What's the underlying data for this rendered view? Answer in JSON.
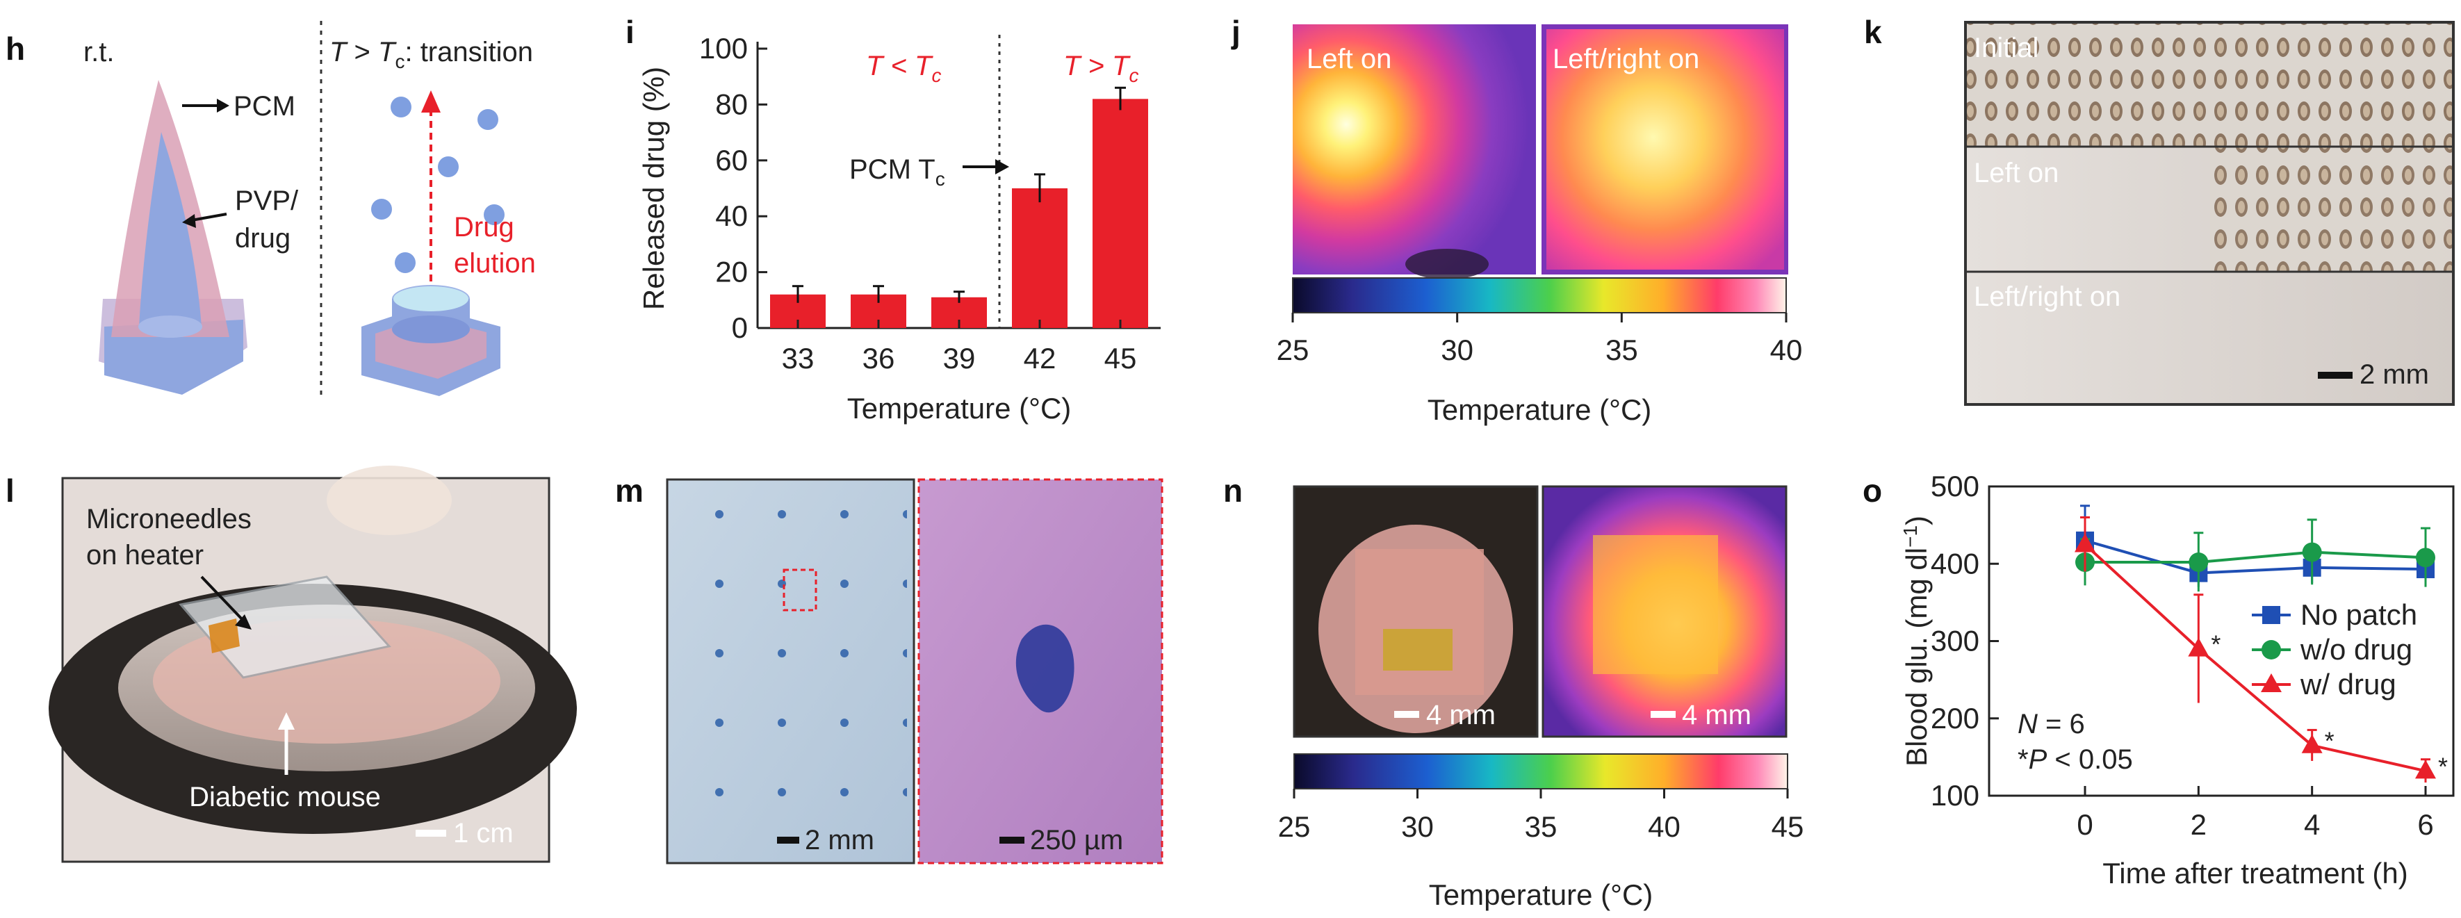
{
  "panels": {
    "h": {
      "label": "h",
      "left_title": "r.t.",
      "right_title_italic": "T",
      "right_title_gt": " > ",
      "right_title_tc": "T",
      "right_title_sub": "c",
      "right_title_rest": ": transition",
      "pcm": "PCM",
      "pvp_line1": "PVP/",
      "pvp_line2": "drug",
      "elution_line1": "Drug",
      "elution_line2": "elution"
    },
    "i": {
      "label": "i",
      "region_low": "T < T",
      "region_low_sub": "c",
      "region_high": "T > T",
      "region_high_sub": "c",
      "pcm_tc": "PCM T",
      "pcm_tc_sub": "c"
    },
    "j": {
      "label": "j",
      "left_on": "Left on",
      "left_right_on": "Left/right on",
      "colorbar_ticks": [
        "25",
        "30",
        "35",
        "40"
      ],
      "xlabel": "Temperature (°C)"
    },
    "k": {
      "label": "k",
      "rows": [
        "Initial",
        "Left on",
        "Left/right on"
      ],
      "scale": "2 mm"
    },
    "l": {
      "label": "l",
      "callout_line1": "Microneedles",
      "callout_line2": "on heater",
      "mouse": "Diabetic mouse",
      "scale": "1 cm"
    },
    "m": {
      "label": "m",
      "scale_left": "2 mm",
      "scale_right": "250 µm"
    },
    "n": {
      "label": "n",
      "scale_left": "4 mm",
      "scale_right": "4 mm",
      "colorbar_ticks": [
        "25",
        "30",
        "35",
        "40",
        "45"
      ],
      "xlabel": "Temperature (°C)"
    },
    "o": {
      "label": "o",
      "annotation_n": "N = 6",
      "annotation_p": "*P < 0.05",
      "star": "*"
    }
  },
  "colors": {
    "red": "#e8202a",
    "blue": "#1f4fb4",
    "green": "#1a9a4a",
    "needle_blue": "#8fa6df",
    "pcm_pink": "#d9a0b5"
  },
  "chart_data": [
    {
      "id": "panel-i",
      "type": "bar",
      "title": "",
      "categories": [
        "33",
        "36",
        "39",
        "42",
        "45"
      ],
      "values": [
        12,
        12,
        11,
        50,
        82
      ],
      "errors": [
        3,
        3,
        2,
        5,
        4
      ],
      "xlabel": "Temperature (°C)",
      "ylabel": "Released drug (%)",
      "ylim": [
        0,
        100
      ],
      "yticks": [
        "0",
        "20",
        "40",
        "60",
        "80",
        "100"
      ],
      "threshold_between": [
        "39",
        "42"
      ]
    },
    {
      "id": "panel-o",
      "type": "line",
      "x": [
        0,
        2,
        4,
        6
      ],
      "xticks": [
        "0",
        "2",
        "4",
        "6"
      ],
      "xlabel": "Time after treatment (h)",
      "ylabel": "Blood glu. (mg dl",
      "ylabel_sup": "−1",
      "ylabel_close": ")",
      "ylim": [
        100,
        500
      ],
      "yticks": [
        "100",
        "200",
        "300",
        "400",
        "500"
      ],
      "series": [
        {
          "name": "No patch",
          "marker": "square",
          "color": "#1f4fb4",
          "values": [
            430,
            388,
            395,
            393
          ],
          "errors": [
            45,
            18,
            20,
            20
          ]
        },
        {
          "name": "w/o drug",
          "marker": "circle",
          "color": "#1a9a4a",
          "values": [
            402,
            402,
            415,
            408
          ],
          "errors": [
            30,
            38,
            42,
            38
          ]
        },
        {
          "name": "w/ drug",
          "marker": "triangle",
          "color": "#e8202a",
          "values": [
            425,
            290,
            165,
            132
          ],
          "errors": [
            35,
            70,
            20,
            15
          ]
        }
      ],
      "significant_points": [
        1,
        2,
        3
      ]
    }
  ]
}
